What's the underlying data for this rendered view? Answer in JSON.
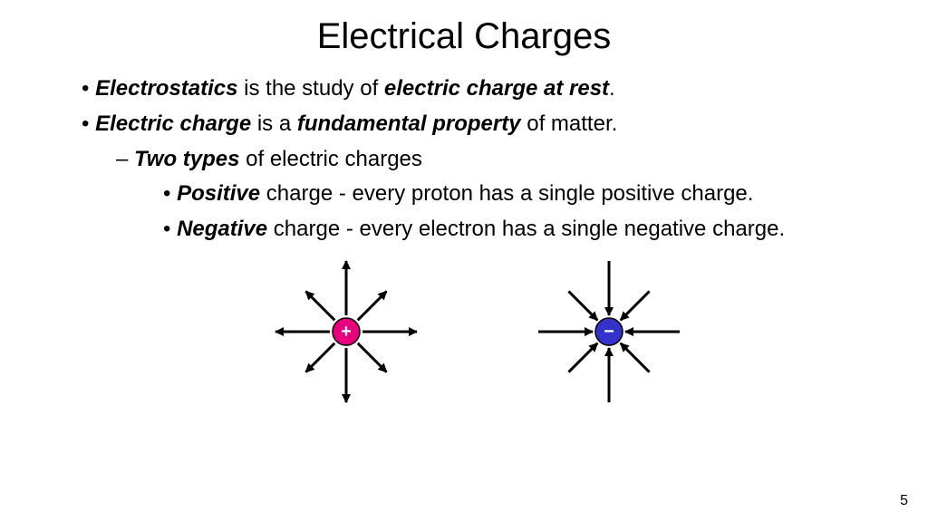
{
  "title": "Electrical Charges",
  "page_number": "5",
  "bullets": {
    "b1_bold1": "Electrostatics",
    "b1_mid": " is the study of ",
    "b1_bold2": "electric charge at rest",
    "b1_end": ".",
    "b2_bold1": "Electric charge",
    "b2_mid": " is a ",
    "b2_bold2": "fundamental property",
    "b2_end": " of matter.",
    "b3_bold": "Two types",
    "b3_rest": " of electric charges",
    "b4_bold": "Positive",
    "b4_rest": " charge - every proton has a single positive charge.",
    "b5_bold": "Negative",
    "b5_rest": " charge - every electron has a single negative charge."
  },
  "diagrams": {
    "positive": {
      "direction": "outward",
      "circle_fill": "#e6007e",
      "circle_stroke": "#000000",
      "circle_radius": 15,
      "symbol": "+",
      "symbol_color": "#ffffff",
      "arrow_color": "#000000",
      "arrow_length_short": 30,
      "arrow_length_long": 60,
      "arrow_width": 3,
      "arrowhead_size": 10,
      "arrow_angles_deg": [
        0,
        45,
        90,
        135,
        180,
        225,
        270,
        315
      ]
    },
    "negative": {
      "direction": "inward",
      "circle_fill": "#3333cc",
      "circle_stroke": "#000000",
      "circle_radius": 15,
      "symbol": "−",
      "symbol_color": "#ffffff",
      "arrow_color": "#000000",
      "arrow_length_short": 30,
      "arrow_length_long": 60,
      "arrow_width": 3,
      "arrowhead_size": 10,
      "arrow_angles_deg": [
        0,
        45,
        90,
        135,
        180,
        225,
        270,
        315
      ]
    }
  },
  "colors": {
    "background": "#ffffff",
    "text": "#000000"
  },
  "fonts": {
    "title_size_pt": 40,
    "body_size_pt": 24,
    "family": "Arial"
  }
}
